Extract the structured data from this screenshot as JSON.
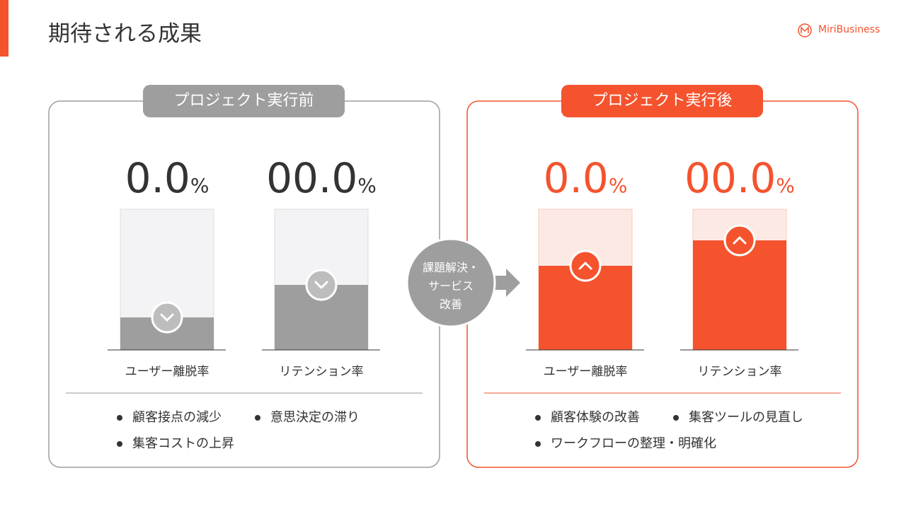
{
  "header": {
    "title": "期待される成果",
    "brand": "MiriBusiness"
  },
  "panels": [
    {
      "label": "プロジェクト実行前",
      "metrics": [
        {
          "value": "0.0",
          "unit": "%",
          "label": "ユーザー離脱率"
        },
        {
          "value": "00.0",
          "unit": "%",
          "label": "リテンション率"
        }
      ],
      "bullets": [
        "顧客接点の減少",
        "意思決定の滞り",
        "集客コストの上昇"
      ]
    },
    {
      "label": "プロジェクト実行後",
      "metrics": [
        {
          "value": "0.0",
          "unit": "%",
          "label": "ユーザー離脱率"
        },
        {
          "value": "00.0",
          "unit": "%",
          "label": "リテンション率"
        }
      ],
      "bullets": [
        "顧客体験の改善",
        "集客ツールの見直し",
        "ワークフローの整理・明確化"
      ]
    }
  ],
  "center": {
    "lines": [
      "課題解決・",
      "サービス",
      "改善"
    ]
  }
}
